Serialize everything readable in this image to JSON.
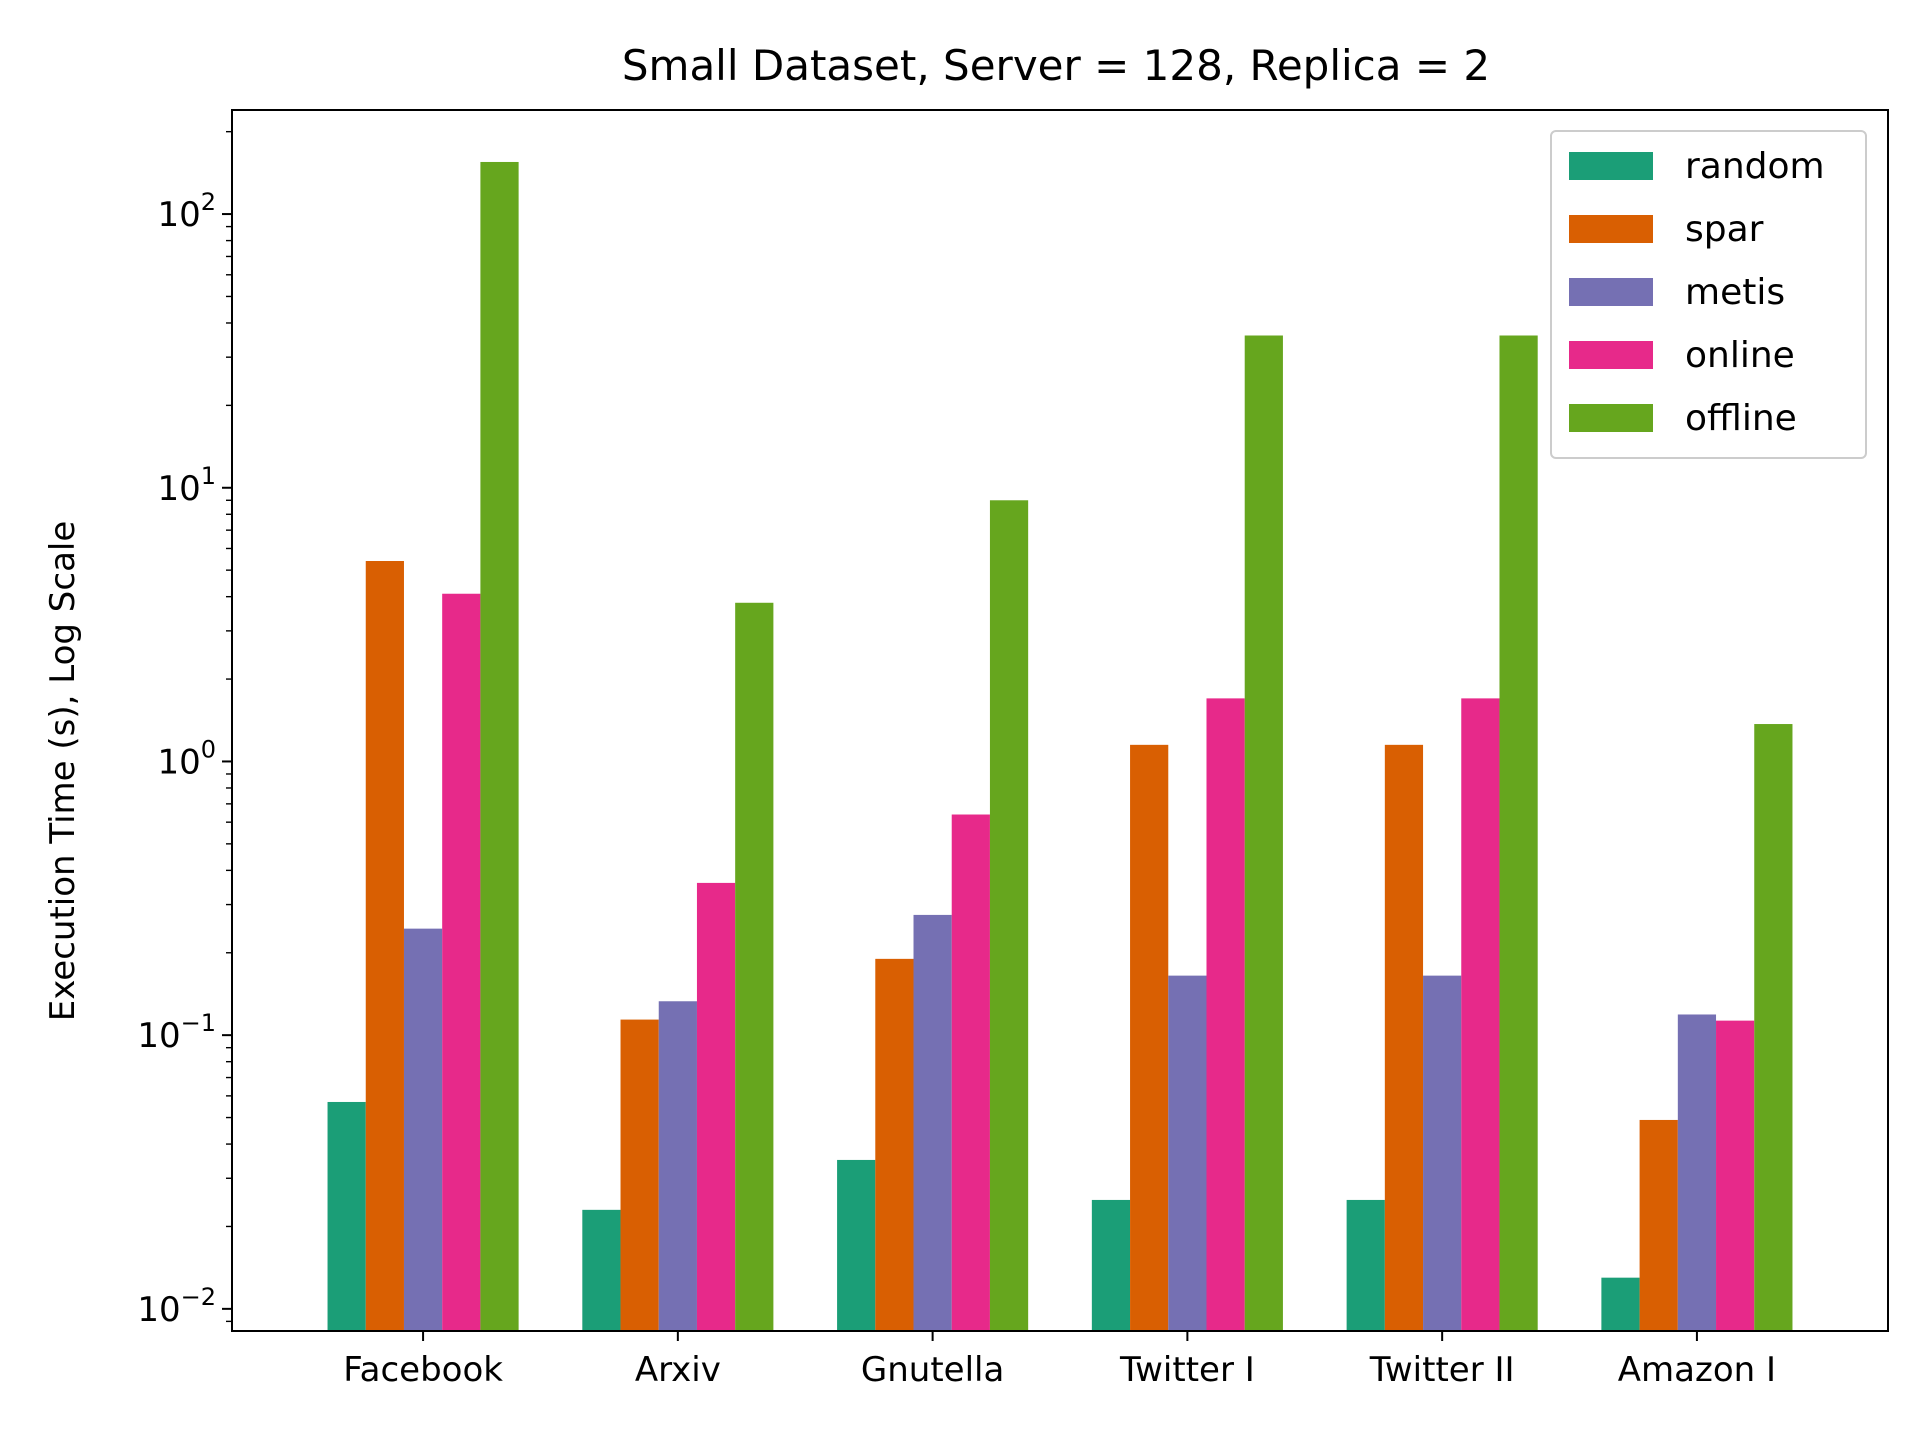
{
  "chart_data": {
    "type": "bar",
    "title": "Small Dataset, Server = 128, Replica = 2",
    "xlabel": "",
    "ylabel": "Execution Time (s), Log Scale",
    "yscale": "log",
    "ylim": [
      0.0083,
      240
    ],
    "yticks": [
      {
        "value": 0.01,
        "base": "10",
        "exp": "−2"
      },
      {
        "value": 0.1,
        "base": "10",
        "exp": "−1"
      },
      {
        "value": 1,
        "base": "10",
        "exp": "0"
      },
      {
        "value": 10,
        "base": "10",
        "exp": "1"
      },
      {
        "value": 100,
        "base": "10",
        "exp": "2"
      }
    ],
    "categories": [
      "Facebook",
      "Arxiv",
      "Gnutella",
      "Twitter I",
      "Twitter II",
      "Amazon I"
    ],
    "series": [
      {
        "name": "random",
        "color": "#1b9e77",
        "values": [
          0.057,
          0.023,
          0.035,
          0.025,
          0.025,
          0.013
        ]
      },
      {
        "name": "spar",
        "color": "#d95f02",
        "values": [
          5.4,
          0.114,
          0.19,
          1.15,
          1.15,
          0.049
        ]
      },
      {
        "name": "metis",
        "color": "#7570b3",
        "values": [
          0.245,
          0.133,
          0.275,
          0.165,
          0.165,
          0.119
        ]
      },
      {
        "name": "online",
        "color": "#e7298a",
        "values": [
          4.1,
          0.36,
          0.64,
          1.7,
          1.7,
          0.113
        ]
      },
      {
        "name": "offline",
        "color": "#66a61e",
        "values": [
          155,
          3.8,
          9.0,
          36,
          36,
          1.37
        ]
      }
    ],
    "legend": {
      "position": "top-right"
    },
    "grid": false
  }
}
